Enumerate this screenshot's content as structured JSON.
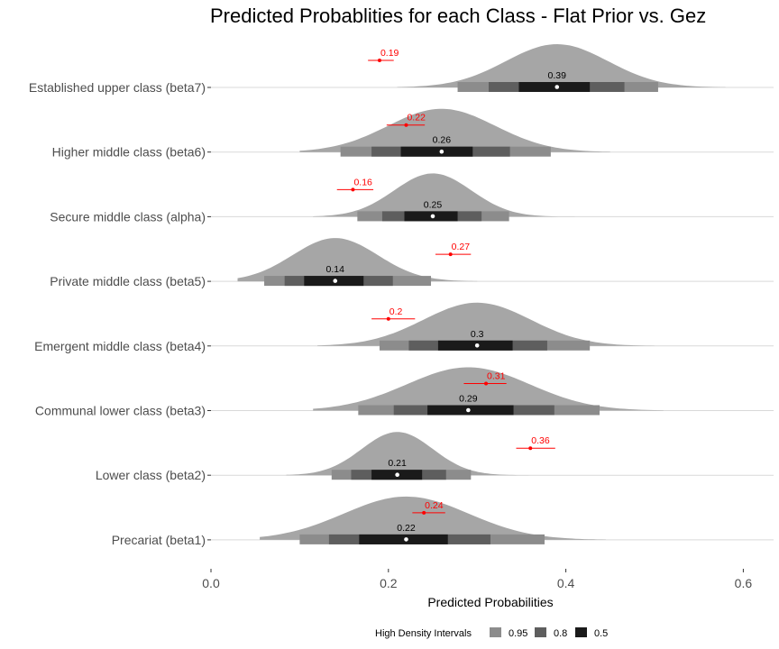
{
  "chart_data": {
    "type": "interval",
    "title": "Predicted Probablities for each Class - Flat Prior vs. Gez",
    "xlabel": "Predicted Probabilities",
    "ylabel": "",
    "xlim": [
      -0.13,
      0.64
    ],
    "xticks": [
      0.0,
      0.2,
      0.4,
      0.6
    ],
    "xtick_labels": [
      "0.0",
      "0.2",
      "0.4",
      "0.6"
    ],
    "grid": "horizontal baselines only",
    "legend": {
      "title": "High Density Intervals",
      "position": "bottom",
      "items": [
        {
          "label": "0.95",
          "color": "#8c8c8c"
        },
        {
          "label": "0.8",
          "color": "#5e5e5e"
        },
        {
          "label": "0.5",
          "color": "#1a1a1a"
        }
      ]
    },
    "colors": {
      "density": "#a6a6a6",
      "reference": "#ff0000",
      "median_point": "#ffffff"
    },
    "categories": [
      "Established upper class (beta7)",
      "Higher middle class (beta6)",
      "Secure middle class (alpha)",
      "Private middle class (beta5)",
      "Emergent middle class (beta4)",
      "Communal lower class (beta3)",
      "Lower class (beta2)",
      "Precariat (beta1)"
    ],
    "rows": [
      {
        "median": 0.39,
        "label": "0.39",
        "hdi95": [
          0.278,
          0.504
        ],
        "hdi80": [
          0.313,
          0.466
        ],
        "hdi50": [
          0.347,
          0.427
        ],
        "density_range": [
          0.21,
          0.58
        ],
        "reference": 0.19,
        "reference_label": "0.19",
        "reference_interval": [
          0.177,
          0.206
        ]
      },
      {
        "median": 0.26,
        "label": "0.26",
        "hdi95": [
          0.146,
          0.383
        ],
        "hdi80": [
          0.181,
          0.337
        ],
        "hdi50": [
          0.214,
          0.295
        ],
        "density_range": [
          0.1,
          0.45
        ],
        "reference": 0.22,
        "reference_label": "0.22",
        "reference_interval": [
          0.198,
          0.241
        ]
      },
      {
        "median": 0.25,
        "label": "0.25",
        "hdi95": [
          0.165,
          0.336
        ],
        "hdi80": [
          0.193,
          0.305
        ],
        "hdi50": [
          0.218,
          0.278
        ],
        "density_range": [
          0.115,
          0.41
        ],
        "reference": 0.16,
        "reference_label": "0.16",
        "reference_interval": [
          0.142,
          0.183
        ]
      },
      {
        "median": 0.14,
        "label": "0.14",
        "hdi95": [
          0.06,
          0.248
        ],
        "hdi80": [
          0.083,
          0.205
        ],
        "hdi50": [
          0.105,
          0.172
        ],
        "density_range": [
          0.03,
          0.3
        ],
        "reference": 0.27,
        "reference_label": "0.27",
        "reference_interval": [
          0.253,
          0.293
        ]
      },
      {
        "median": 0.3,
        "label": "0.3",
        "hdi95": [
          0.19,
          0.427
        ],
        "hdi80": [
          0.223,
          0.379
        ],
        "hdi50": [
          0.256,
          0.34
        ],
        "density_range": [
          0.12,
          0.5
        ],
        "reference": 0.2,
        "reference_label": "0.2",
        "reference_interval": [
          0.181,
          0.23
        ]
      },
      {
        "median": 0.29,
        "label": "0.29",
        "hdi95": [
          0.166,
          0.438
        ],
        "hdi80": [
          0.206,
          0.387
        ],
        "hdi50": [
          0.244,
          0.341
        ],
        "density_range": [
          0.115,
          0.51
        ],
        "reference": 0.31,
        "reference_label": "0.31",
        "reference_interval": [
          0.285,
          0.333
        ]
      },
      {
        "median": 0.21,
        "label": "0.21",
        "hdi95": [
          0.136,
          0.293
        ],
        "hdi80": [
          0.158,
          0.265
        ],
        "hdi50": [
          0.181,
          0.238
        ],
        "density_range": [
          0.085,
          0.36
        ],
        "reference": 0.36,
        "reference_label": "0.36",
        "reference_interval": [
          0.344,
          0.388
        ]
      },
      {
        "median": 0.22,
        "label": "0.22",
        "hdi95": [
          0.1,
          0.376
        ],
        "hdi80": [
          0.133,
          0.315
        ],
        "hdi50": [
          0.167,
          0.267
        ],
        "density_range": [
          0.055,
          0.445
        ],
        "reference": 0.24,
        "reference_label": "0.24",
        "reference_interval": [
          0.227,
          0.264
        ]
      }
    ]
  }
}
